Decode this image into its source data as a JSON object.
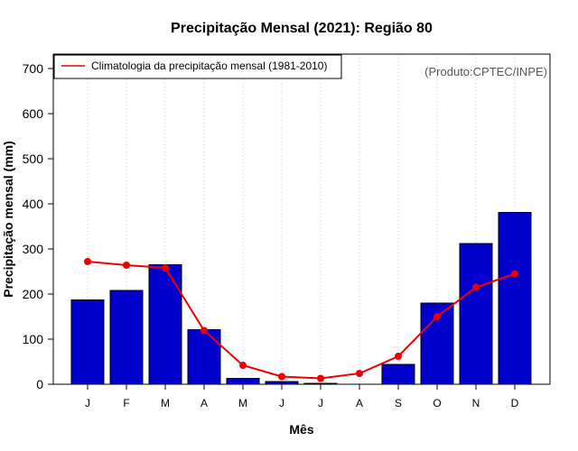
{
  "chart_data": {
    "type": "bar",
    "title": "Precipitação Mensal (2021): Região 80",
    "xlabel": "Mês",
    "ylabel": "Precipitação mensal (mm)",
    "categories": [
      "J",
      "F",
      "M",
      "A",
      "M",
      "J",
      "J",
      "A",
      "S",
      "O",
      "N",
      "D"
    ],
    "ylim": [
      0,
      700
    ],
    "yticks": [
      0,
      100,
      200,
      300,
      400,
      500,
      600,
      700
    ],
    "grid": "vertical-dotted",
    "legend_position": "top-left",
    "source_note": "(Produto:CPTEC/INPE)",
    "series": [
      {
        "name": "Precipitação mensal 2021",
        "kind": "bar",
        "color": "#0000CD",
        "values": [
          187,
          208,
          265,
          121,
          13,
          6,
          2,
          0,
          44,
          180,
          312,
          381
        ]
      },
      {
        "name": "Climatologia da precipitação mensal (1981-2010)",
        "kind": "line",
        "color": "#EE0000",
        "values": [
          272,
          264,
          258,
          119,
          42,
          17,
          13,
          24,
          62,
          150,
          215,
          245
        ]
      }
    ]
  }
}
